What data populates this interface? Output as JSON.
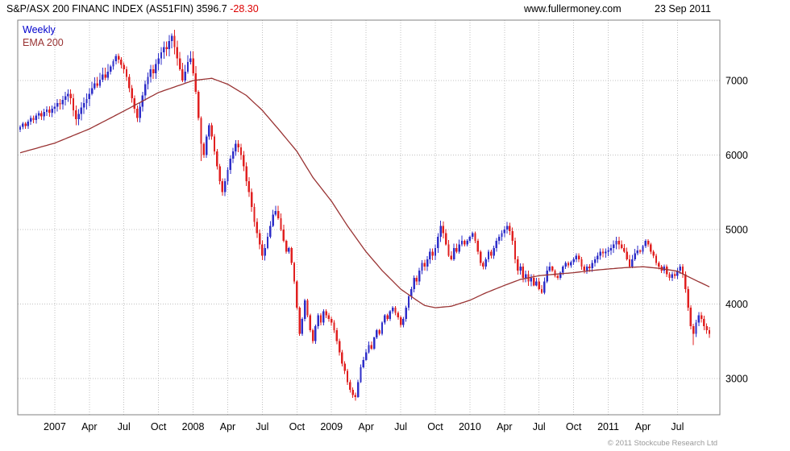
{
  "header": {
    "title": "S&P/ASX 200 FINANC INDEX (AS51FIN)",
    "price": "3596.7",
    "change": "-28.30",
    "website": "www.fullermoney.com",
    "date": "23 Sep 2011"
  },
  "legend": {
    "series1": "Weekly",
    "series2": "EMA 200"
  },
  "footer": {
    "copyright": "© 2011 Stockcube Research Ltd"
  },
  "chart_data": {
    "type": "candlestick",
    "title": "S&P/ASX 200 FINANC INDEX (AS51FIN)",
    "frequency": "Weekly",
    "overlay": "EMA 200",
    "last_close": 3596.7,
    "change": -28.3,
    "x_start": "Oct 2006",
    "x_end": "23 Sep 2011",
    "ylim": [
      2513,
      7811
    ],
    "yticks": [
      3000,
      4000,
      5000,
      6000,
      7000
    ],
    "grid": "dotted",
    "legend_position": "top-left",
    "x_labels": [
      {
        "week": 13,
        "label": "2007"
      },
      {
        "week": 26,
        "label": "Apr"
      },
      {
        "week": 39,
        "label": "Jul"
      },
      {
        "week": 52,
        "label": "Oct"
      },
      {
        "week": 65,
        "label": "2008"
      },
      {
        "week": 78,
        "label": "Apr"
      },
      {
        "week": 91,
        "label": "Jul"
      },
      {
        "week": 104,
        "label": "Oct"
      },
      {
        "week": 117,
        "label": "2009"
      },
      {
        "week": 130,
        "label": "Apr"
      },
      {
        "week": 143,
        "label": "Jul"
      },
      {
        "week": 156,
        "label": "Oct"
      },
      {
        "week": 169,
        "label": "2010"
      },
      {
        "week": 182,
        "label": "Apr"
      },
      {
        "week": 195,
        "label": "Jul"
      },
      {
        "week": 208,
        "label": "Oct"
      },
      {
        "week": 221,
        "label": "2011"
      },
      {
        "week": 234,
        "label": "Apr"
      },
      {
        "week": 247,
        "label": "Jul"
      }
    ],
    "closes": [
      6380,
      6420,
      6390,
      6450,
      6500,
      6470,
      6530,
      6560,
      6520,
      6580,
      6610,
      6570,
      6620,
      6650,
      6700,
      6680,
      6740,
      6790,
      6820,
      6760,
      6600,
      6480,
      6550,
      6640,
      6700,
      6750,
      6820,
      6900,
      6960,
      6930,
      7010,
      7080,
      7040,
      7120,
      7190,
      7260,
      7330,
      7280,
      7210,
      7150,
      7050,
      6900,
      6760,
      6620,
      6500,
      6650,
      6800,
      6950,
      7050,
      7150,
      7100,
      7220,
      7300,
      7380,
      7450,
      7420,
      7530,
      7600,
      7450,
      7300,
      7150,
      7000,
      7120,
      7250,
      7300,
      7100,
      6850,
      6500,
      6150,
      6000,
      6250,
      6400,
      6250,
      6050,
      5850,
      5650,
      5500,
      5650,
      5800,
      5950,
      6050,
      6150,
      6100,
      6000,
      5850,
      5650,
      5500,
      5300,
      5100,
      4950,
      4800,
      4650,
      4750,
      4900,
      5050,
      5200,
      5250,
      5150,
      5000,
      4850,
      4700,
      4750,
      4550,
      4300,
      3950,
      3600,
      3800,
      4050,
      3850,
      3650,
      3500,
      3700,
      3850,
      3750,
      3900,
      3850,
      3800,
      3750,
      3650,
      3500,
      3350,
      3200,
      3100,
      2950,
      2850,
      2780,
      2750,
      2950,
      3150,
      3250,
      3350,
      3450,
      3400,
      3550,
      3650,
      3600,
      3750,
      3850,
      3800,
      3900,
      3950,
      3880,
      3820,
      3720,
      3800,
      3950,
      4100,
      4200,
      4350,
      4300,
      4450,
      4550,
      4500,
      4600,
      4700,
      4650,
      4750,
      4900,
      5050,
      4950,
      4800,
      4650,
      4600,
      4750,
      4700,
      4800,
      4850,
      4800,
      4850,
      4900,
      4950,
      4850,
      4700,
      4550,
      4500,
      4600,
      4700,
      4650,
      4750,
      4850,
      4900,
      4950,
      5000,
      5050,
      4980,
      4850,
      4600,
      4450,
      4500,
      4350,
      4400,
      4300,
      4350,
      4250,
      4300,
      4200,
      4150,
      4300,
      4450,
      4500,
      4450,
      4380,
      4350,
      4420,
      4500,
      4550,
      4520,
      4560,
      4600,
      4650,
      4600,
      4500,
      4450,
      4500,
      4480,
      4550,
      4600,
      4650,
      4700,
      4680,
      4700,
      4720,
      4750,
      4800,
      4850,
      4800,
      4750,
      4700,
      4600,
      4500,
      4600,
      4680,
      4720,
      4700,
      4780,
      4850,
      4800,
      4700,
      4650,
      4550,
      4500,
      4450,
      4500,
      4400,
      4350,
      4400,
      4380,
      4450,
      4500,
      4400,
      4200,
      3950,
      3700,
      3600,
      3750,
      3850,
      3800,
      3700,
      3650,
      3597
    ],
    "wick_overrides": {
      "high": {
        "57": 7630,
        "158": 5120,
        "183": 5100
      },
      "low": {
        "68": 5920,
        "126": 2700,
        "253": 3450
      }
    },
    "ema200_anchors": [
      [
        0,
        6030
      ],
      [
        13,
        6160
      ],
      [
        26,
        6350
      ],
      [
        39,
        6590
      ],
      [
        52,
        6840
      ],
      [
        65,
        7000
      ],
      [
        72,
        7030
      ],
      [
        78,
        6950
      ],
      [
        85,
        6800
      ],
      [
        91,
        6600
      ],
      [
        97,
        6350
      ],
      [
        104,
        6050
      ],
      [
        110,
        5700
      ],
      [
        117,
        5380
      ],
      [
        123,
        5050
      ],
      [
        130,
        4700
      ],
      [
        136,
        4450
      ],
      [
        143,
        4200
      ],
      [
        149,
        4050
      ],
      [
        152,
        3980
      ],
      [
        156,
        3950
      ],
      [
        162,
        3970
      ],
      [
        169,
        4050
      ],
      [
        175,
        4150
      ],
      [
        182,
        4250
      ],
      [
        188,
        4330
      ],
      [
        195,
        4380
      ],
      [
        201,
        4400
      ],
      [
        208,
        4420
      ],
      [
        215,
        4450
      ],
      [
        221,
        4470
      ],
      [
        228,
        4490
      ],
      [
        234,
        4500
      ],
      [
        240,
        4480
      ],
      [
        247,
        4440
      ],
      [
        252,
        4350
      ],
      [
        259,
        4230
      ]
    ],
    "colors": {
      "up": "#2e2ec8",
      "down": "#e02020",
      "ema": "#993333",
      "grid": "#c0c0c0",
      "border": "#808080",
      "text": "#000000",
      "muted": "#999999",
      "legend_weekly": "#0000cc",
      "change_red": "#dd0000"
    }
  }
}
